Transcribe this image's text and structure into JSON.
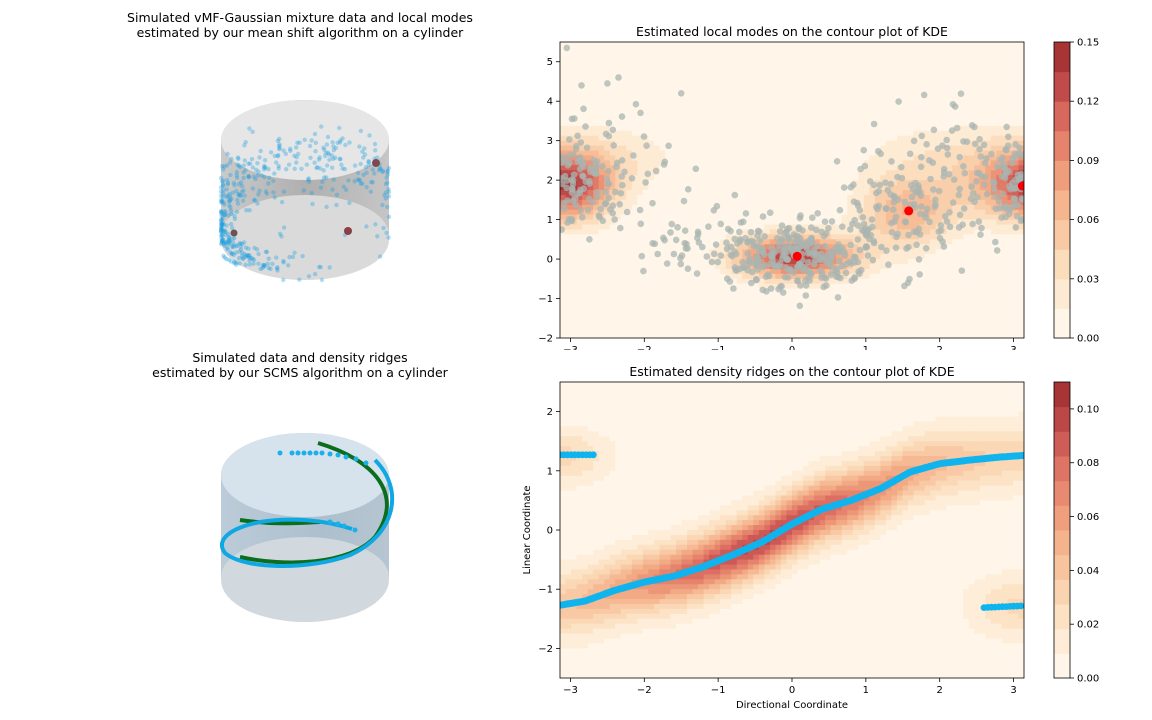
{
  "colors": {
    "data_blue": "#1a9fe0",
    "data_grey": "#a9b4b0",
    "ridge_blue": "#0fb4ee",
    "ridge_green": "#0a6e1e",
    "mode_red": "#ff0000",
    "cylinder_grey": "#c9c9c9",
    "cylinder_blue": "#c3d5e2"
  },
  "colormap": [
    "#fff6e9",
    "#fde8cf",
    "#fbd8b5",
    "#f7c29b",
    "#f2aa85",
    "#e98d72",
    "#dc6f62",
    "#c44e4e",
    "#a73535"
  ],
  "panels": {
    "top_left": {
      "title": "Simulated vMF-Gaussian mixture data and local modes\n estimated by our mean shift algorithm on a cylinder"
    },
    "bottom_left": {
      "title": "Simulated data and density ridges\n estimated by our SCMS algorithm on a cylinder"
    }
  },
  "chart_data": [
    {
      "type": "heatmap",
      "id": "modes",
      "title": "Estimated local modes on the contour plot of KDE",
      "xlabel": "",
      "ylabel": "",
      "xlim": [
        -3.1416,
        3.1416
      ],
      "ylim": [
        -2,
        5.5
      ],
      "xticks": [
        -3,
        -2,
        -1,
        0,
        1,
        2,
        3
      ],
      "yticks": [
        -2,
        -1,
        0,
        1,
        2,
        3,
        4,
        5
      ],
      "colorbar": {
        "min": 0,
        "max": 0.15,
        "ticks": [
          0.0,
          0.03,
          0.06,
          0.09,
          0.12,
          0.15
        ],
        "labels": [
          "0.00",
          "0.03",
          "0.06",
          "0.09",
          "0.12",
          "0.15"
        ],
        "levels": 10
      },
      "density_components": [
        {
          "mx": 0.05,
          "my": 0.05,
          "sx": 0.55,
          "sy": 0.38,
          "w": 0.15
        },
        {
          "mx": 1.55,
          "my": 1.2,
          "sx": 0.45,
          "sy": 0.65,
          "w": 0.075
        },
        {
          "mx": 3.05,
          "my": 1.85,
          "sx": 0.55,
          "sy": 0.6,
          "w": 0.085
        },
        {
          "mx": -2.95,
          "my": 1.85,
          "sx": 0.35,
          "sy": 0.6,
          "w": 0.07
        },
        {
          "mx": 2.2,
          "my": 2.7,
          "sx": 0.9,
          "sy": 0.55,
          "w": 0.025
        },
        {
          "mx": -2.3,
          "my": 2.6,
          "sx": 0.6,
          "sy": 0.6,
          "w": 0.02
        }
      ],
      "modes": [
        {
          "x": 0.07,
          "y": 0.07
        },
        {
          "x": 1.58,
          "y": 1.22
        },
        {
          "x": 3.12,
          "y": 1.85
        }
      ]
    },
    {
      "type": "heatmap",
      "id": "ridges",
      "title": "Estimated density ridges on the contour plot of KDE",
      "xlabel": "Directional Coordinate",
      "ylabel": "Linear Coordinate",
      "xlim": [
        -3.1416,
        3.1416
      ],
      "ylim": [
        -2.5,
        2.5
      ],
      "xticks": [
        -3,
        -2,
        -1,
        0,
        1,
        2,
        3
      ],
      "yticks": [
        -2,
        -1,
        0,
        1,
        2
      ],
      "colorbar": {
        "min": 0,
        "max": 0.11,
        "ticks": [
          0.0,
          0.02,
          0.04,
          0.06,
          0.08,
          0.1
        ],
        "labels": [
          "0.00",
          "0.02",
          "0.04",
          "0.06",
          "0.08",
          "0.10"
        ],
        "levels": 12
      },
      "ridge": {
        "x": [
          -3.14,
          -2.8,
          -2.4,
          -2.0,
          -1.6,
          -1.2,
          -0.8,
          -0.4,
          0.0,
          0.4,
          0.8,
          1.2,
          1.6,
          2.0,
          2.4,
          2.8,
          3.14
        ],
        "y": [
          -1.27,
          -1.2,
          -1.02,
          -0.88,
          -0.78,
          -0.62,
          -0.42,
          -0.2,
          0.1,
          0.35,
          0.5,
          0.7,
          0.98,
          1.12,
          1.18,
          1.23,
          1.26
        ]
      },
      "ridge_segments": [
        {
          "x": [
            -3.14,
            -2.65
          ],
          "y": [
            1.27,
            1.27
          ]
        },
        {
          "x": [
            2.6,
            3.14
          ],
          "y": [
            -1.31,
            -1.28
          ]
        }
      ]
    }
  ]
}
